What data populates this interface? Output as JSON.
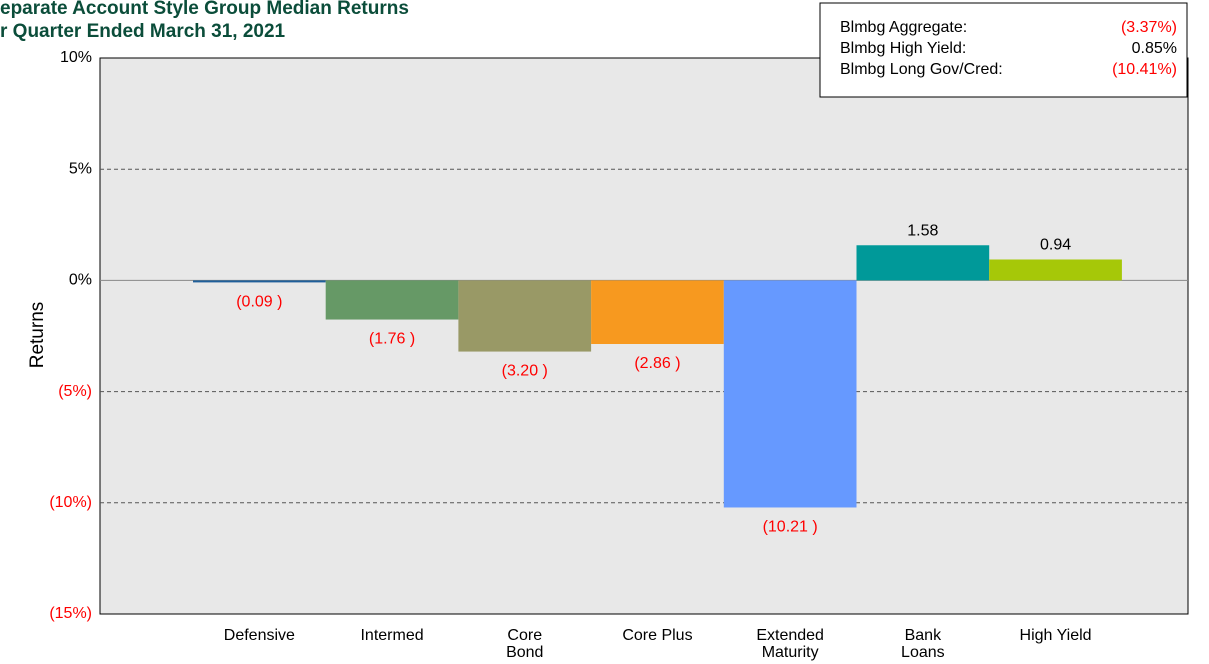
{
  "chart_data": {
    "type": "bar",
    "title": "eparate Account Style Group Median Returns",
    "subtitle": "r Quarter Ended March 31, 2021",
    "y_label": "Returns",
    "categories": [
      "Defensive",
      "Intermed",
      "Core\nBond",
      "Core Plus",
      "Extended\nMaturity",
      "Bank\nLoans",
      "High Yield"
    ],
    "values": [
      -0.09,
      -1.76,
      -3.2,
      -2.86,
      -10.21,
      1.58,
      0.94
    ],
    "value_labels": [
      "(0.09 )",
      "(1.76 )",
      "(3.20 )",
      "(2.86 )",
      "(10.21 )",
      "1.58",
      "0.94"
    ],
    "colors": [
      "#1f5f9a",
      "#669966",
      "#999966",
      "#f7991f",
      "#6699ff",
      "#009999",
      "#a6c808"
    ],
    "negative_color": "#ff0000",
    "ylim": [
      -15,
      10
    ],
    "yticks": [
      {
        "value": -15,
        "label": "(15%)"
      },
      {
        "value": -10,
        "label": "(10%)"
      },
      {
        "value": -5,
        "label": "(5%)"
      },
      {
        "value": 0,
        "label": "0%"
      },
      {
        "value": 5,
        "label": "5%"
      },
      {
        "value": 10,
        "label": "10%"
      }
    ],
    "grid": true,
    "benchmarks": [
      {
        "name": "Blmbg Aggregate:",
        "value": -3.37,
        "label": "(3.37%)"
      },
      {
        "name": "Blmbg High Yield:",
        "value": 0.85,
        "label": "0.85%"
      },
      {
        "name": "Blmbg Long Gov/Cred:",
        "value": -10.41,
        "label": "(10.41%)"
      }
    ],
    "legend_position": "upper right"
  }
}
